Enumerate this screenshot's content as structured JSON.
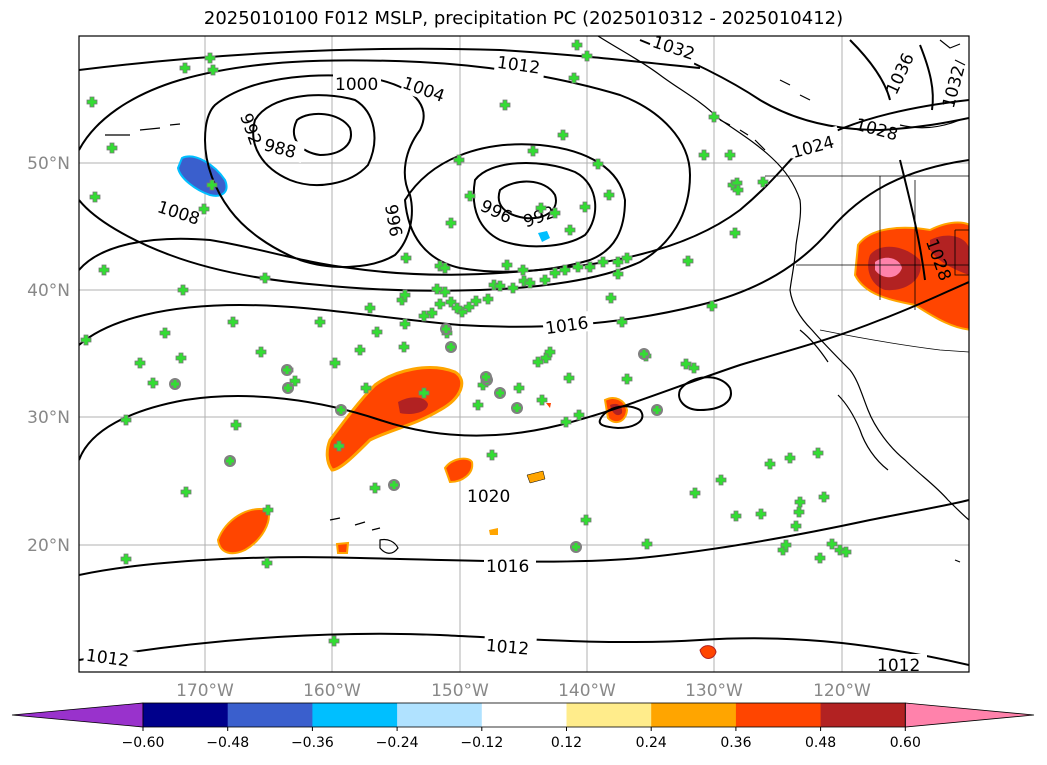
{
  "title": "2025010100 F012 MSLP, precipitation PC (2025010312 - 2025010412)",
  "lat_labels": [
    "50°N",
    "40°N",
    "30°N",
    "20°N"
  ],
  "lon_labels": [
    "170°W",
    "160°W",
    "150°W",
    "140°W",
    "130°W",
    "120°W"
  ],
  "contour_labels": [
    "1000",
    "1004",
    "1012",
    "1032",
    "1036",
    "1032",
    "992",
    "988",
    "1028",
    "1024",
    "996",
    "996",
    "992",
    "1008",
    "1028",
    "1016",
    "1020",
    "1016",
    "1012",
    "1012",
    "1012"
  ],
  "colorbar": {
    "ticks": [
      "−0.60",
      "−0.48",
      "−0.36",
      "−0.24",
      "−0.12",
      "0.12",
      "0.24",
      "0.36",
      "0.48",
      "0.60"
    ],
    "colors": [
      "#9932cc",
      "#00008b",
      "#3a5fcd",
      "#00bfff",
      "#b0e2ff",
      "#ffffff",
      "#ffec8b",
      "#ffa500",
      "#ff4500",
      "#b22222",
      "#ff82ab"
    ]
  }
}
